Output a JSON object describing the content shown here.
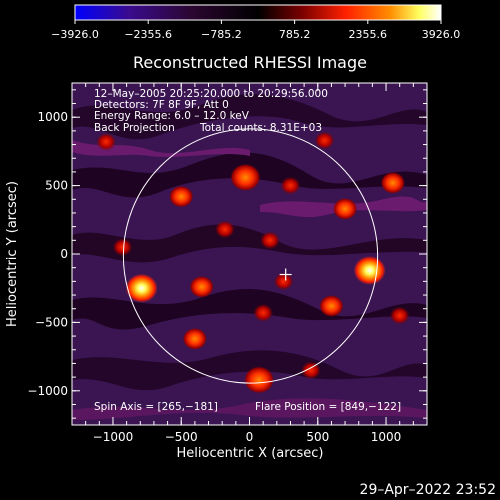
{
  "chart_data": {
    "type": "heatmap",
    "title": "Reconstructed RHESSI Image",
    "xlabel": "Heliocentric X (arcsec)",
    "ylabel": "Heliocentric Y (arcsec)",
    "xlim": [
      -1300,
      1300
    ],
    "ylim": [
      -1250,
      1250
    ],
    "x_ticks": [
      {
        "value": -1000,
        "label": "−1000"
      },
      {
        "value": -500,
        "label": "−500"
      },
      {
        "value": 0,
        "label": "0"
      },
      {
        "value": 500,
        "label": "500"
      },
      {
        "value": 1000,
        "label": "1000"
      }
    ],
    "y_ticks": [
      {
        "value": 1000,
        "label": "1000"
      },
      {
        "value": 500,
        "label": "500"
      },
      {
        "value": 0,
        "label": "0"
      },
      {
        "value": -500,
        "label": "−500"
      },
      {
        "value": -1000,
        "label": "−1000"
      }
    ],
    "colorbar": {
      "min": -3926.0,
      "max": 3926.0,
      "tick_labels": [
        "−3926.0",
        "−2355.6",
        "−785.2",
        "785.2",
        "2355.6",
        "3926.0"
      ],
      "colors": [
        "#0000ff",
        "#3a0b8c",
        "#200420",
        "#000000",
        "#7a0000",
        "#ff2000",
        "#ff8c00",
        "#ffff60",
        "#ffffff"
      ]
    },
    "annotations": {
      "time_range": "12–May–2005 20:25:20.000 to 20:29:56.000",
      "detectors": "Detectors: 7F 8F 9F, Att 0",
      "energy_range": "Energy Range: 6.0 – 12.0 keV",
      "method": "Back Projection",
      "total_counts": "Total counts: 8.31E+03",
      "spin_axis": "Spin Axis = [265,−181]",
      "flare_position": "Flare Position = [849,−122]"
    },
    "solar_limb_radius_arcsec": 950,
    "center_marker": {
      "x": 265,
      "y": -150
    },
    "sources": [
      {
        "x": -790,
        "y": -250,
        "value": 3926
      },
      {
        "x": 880,
        "y": -120,
        "value": 3900
      },
      {
        "x": -30,
        "y": 560,
        "value": 2400
      },
      {
        "x": 70,
        "y": -920,
        "value": 2300
      },
      {
        "x": 700,
        "y": 330,
        "value": 1500
      },
      {
        "x": -350,
        "y": -240,
        "value": 1500
      },
      {
        "x": -500,
        "y": 420,
        "value": 1300
      },
      {
        "x": 600,
        "y": -380,
        "value": 1300
      },
      {
        "x": -930,
        "y": 50,
        "value": 1100
      },
      {
        "x": 300,
        "y": 500,
        "value": 1100
      },
      {
        "x": -400,
        "y": -620,
        "value": 1200
      },
      {
        "x": 450,
        "y": -850,
        "value": 1100
      },
      {
        "x": 1050,
        "y": 520,
        "value": 1200
      },
      {
        "x": -180,
        "y": 180,
        "value": 900
      },
      {
        "x": 150,
        "y": 100,
        "value": 800
      },
      {
        "x": 100,
        "y": -430,
        "value": 900
      },
      {
        "x": 1100,
        "y": -450,
        "value": 1000
      },
      {
        "x": -1050,
        "y": 820,
        "value": 1100
      },
      {
        "x": 250,
        "y": -200,
        "value": 700
      },
      {
        "x": 550,
        "y": 830,
        "value": 900
      }
    ]
  },
  "footer": {
    "date": "29–Apr–2022 23:52"
  }
}
